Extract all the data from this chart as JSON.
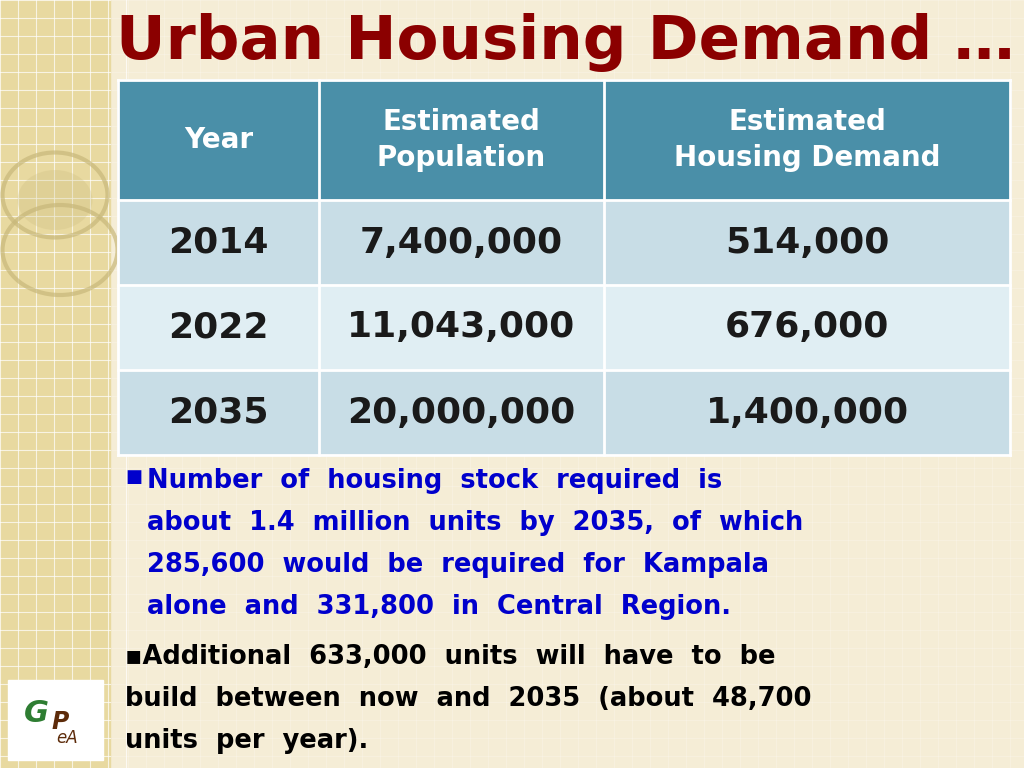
{
  "title": "Urban Housing Demand …",
  "title_color": "#8B0000",
  "background_color": "#F5EDD6",
  "header_bg_color": "#4A8FA8",
  "header_text_color": "#FFFFFF",
  "row1_bg_color": "#C8DDE6",
  "row2_bg_color": "#E0EEF3",
  "row3_bg_color": "#C8DDE6",
  "table_text_color": "#1A1A1A",
  "col_headers": [
    "Year",
    "Estimated\nPopulation",
    "Estimated\nHousing Demand"
  ],
  "rows": [
    [
      "2014",
      "7,400,000",
      "514,000"
    ],
    [
      "2022",
      "11,043,000",
      "676,000"
    ],
    [
      "2035",
      "20,000,000",
      "1,400,000"
    ]
  ],
  "bullet1_color": "#0000CC",
  "bullet2_color": "#000000",
  "left_panel_color": "#E8D9A0",
  "grid_color": "#FFFFFF",
  "grid_alpha": 0.7,
  "circle_color": "#C8B87A",
  "circle_alpha": 0.55
}
